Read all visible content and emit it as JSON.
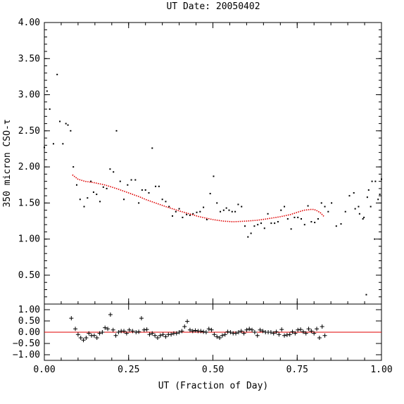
{
  "title": "UT Date: 20050402",
  "colors": {
    "axis": "#000000",
    "fit": "#e00000",
    "points": "#000000",
    "zero_line": "#e00000"
  },
  "chart_data": [
    {
      "type": "scatter",
      "name": "tau-panel",
      "title": "UT Date: 20050402",
      "xlabel": "",
      "ylabel": "350 micron CSO-τ",
      "xlim": [
        0.0,
        1.0
      ],
      "ylim": [
        0.1,
        4.0
      ],
      "yticks": [
        0.5,
        1.0,
        1.5,
        2.0,
        2.5,
        3.0,
        3.5,
        4.0
      ],
      "ytick_labels": [
        "0.50",
        "1.00",
        "1.50",
        "2.00",
        "2.50",
        "3.00",
        "3.50",
        "4.00"
      ],
      "grid": false,
      "series": [
        {
          "marker": "dot",
          "color": "#000000",
          "x": [
            0.0,
            0.008,
            0.016,
            0.027,
            0.038,
            0.046,
            0.055,
            0.064,
            0.07,
            0.078,
            0.086,
            0.096,
            0.106,
            0.118,
            0.128,
            0.138,
            0.146,
            0.155,
            0.165,
            0.175,
            0.185,
            0.195,
            0.205,
            0.214,
            0.225,
            0.236,
            0.247,
            0.258,
            0.27,
            0.28,
            0.29,
            0.3,
            0.31,
            0.32,
            0.33,
            0.34,
            0.35,
            0.36,
            0.37,
            0.38,
            0.39,
            0.4,
            0.41,
            0.422,
            0.432,
            0.441,
            0.452,
            0.462,
            0.472,
            0.482,
            0.492,
            0.502,
            0.512,
            0.522,
            0.532,
            0.54,
            0.548,
            0.557,
            0.566,
            0.575,
            0.585,
            0.595,
            0.604,
            0.613,
            0.623,
            0.633,
            0.643,
            0.653,
            0.663,
            0.673,
            0.683,
            0.693,
            0.702,
            0.712,
            0.722,
            0.732,
            0.742,
            0.752,
            0.762,
            0.772,
            0.782,
            0.792,
            0.802,
            0.812,
            0.822,
            0.832,
            0.842,
            0.852,
            0.866,
            0.88,
            0.893,
            0.905,
            0.918,
            0.932,
            0.945,
            0.958,
            0.968,
            0.98,
            0.99,
            1.0
          ],
          "y": [
            2.27,
            3.05,
            2.8,
            2.32,
            3.28,
            2.63,
            2.32,
            2.6,
            2.58,
            2.5,
            2.0,
            1.75,
            1.55,
            1.45,
            1.57,
            1.8,
            1.65,
            1.62,
            1.52,
            1.72,
            1.7,
            1.97,
            1.93,
            2.5,
            1.8,
            1.55,
            1.75,
            1.82,
            1.82,
            1.5,
            1.68,
            1.68,
            1.64,
            2.26,
            1.73,
            1.73,
            1.55,
            1.52,
            1.45,
            1.32,
            1.38,
            1.42,
            1.3,
            1.34,
            1.33,
            1.35,
            1.37,
            1.38,
            1.44,
            1.27,
            1.63,
            1.87,
            1.5,
            1.38,
            1.4,
            1.43,
            1.4,
            1.38,
            1.38,
            1.48,
            1.45,
            1.18,
            1.03,
            1.08,
            1.18,
            1.2,
            1.22,
            1.15,
            1.35,
            1.22,
            1.22,
            1.24,
            1.4,
            1.45,
            1.28,
            1.14,
            1.3,
            1.3,
            1.28,
            1.2,
            1.46,
            1.24,
            1.23,
            1.28,
            1.5,
            1.45,
            1.38,
            1.5,
            1.18,
            1.21,
            1.38,
            1.6,
            1.64,
            1.45,
            1.28,
            1.58,
            1.45,
            1.0,
            1.55,
            1.83
          ]
        },
        {
          "marker": "dot",
          "color": "#000000",
          "x": [
            0.922,
            0.935,
            0.948,
            0.955,
            0.962,
            0.972,
            0.982,
            0.995
          ],
          "y": [
            1.42,
            1.35,
            1.3,
            0.23,
            1.68,
            1.8,
            1.8,
            1.62
          ]
        },
        {
          "marker": "line",
          "color": "#e00000",
          "x": [
            0.083,
            0.1,
            0.12,
            0.15,
            0.18,
            0.2,
            0.22,
            0.25,
            0.28,
            0.3,
            0.33,
            0.36,
            0.4,
            0.43,
            0.46,
            0.5,
            0.53,
            0.56,
            0.6,
            0.63,
            0.66,
            0.7,
            0.73,
            0.75,
            0.77,
            0.79,
            0.8,
            0.81,
            0.82,
            0.83
          ],
          "y": [
            1.89,
            1.83,
            1.8,
            1.78,
            1.75,
            1.72,
            1.69,
            1.64,
            1.59,
            1.55,
            1.5,
            1.45,
            1.39,
            1.35,
            1.31,
            1.27,
            1.25,
            1.24,
            1.25,
            1.26,
            1.28,
            1.31,
            1.34,
            1.37,
            1.4,
            1.41,
            1.41,
            1.39,
            1.36,
            1.31
          ]
        }
      ]
    },
    {
      "type": "scatter",
      "name": "residual-panel",
      "xlabel": "UT (Fraction of Day)",
      "ylabel": "",
      "xlim": [
        0.0,
        1.0
      ],
      "ylim": [
        -1.25,
        1.25
      ],
      "yticks": [
        -1.0,
        -0.5,
        0.0,
        0.5,
        1.0
      ],
      "ytick_labels": [
        "−1.00",
        "−0.50",
        "0.00",
        "0.50",
        "1.00"
      ],
      "xticks": [
        0.0,
        0.25,
        0.5,
        0.75,
        1.0
      ],
      "xtick_labels": [
        "0.00",
        "0.25",
        "0.50",
        "0.75",
        "1.00"
      ],
      "zero_line": 0.0,
      "grid": false,
      "series": [
        {
          "marker": "plus",
          "color": "#000000",
          "x": [
            0.08,
            0.092,
            0.1,
            0.108,
            0.116,
            0.124,
            0.132,
            0.14,
            0.148,
            0.156,
            0.164,
            0.172,
            0.18,
            0.188,
            0.196,
            0.204,
            0.212,
            0.22,
            0.228,
            0.236,
            0.244,
            0.252,
            0.262,
            0.272,
            0.28,
            0.288,
            0.296,
            0.304,
            0.312,
            0.32,
            0.328,
            0.336,
            0.344,
            0.352,
            0.36,
            0.368,
            0.376,
            0.384,
            0.392,
            0.4,
            0.408,
            0.416,
            0.424,
            0.432,
            0.44,
            0.448,
            0.456,
            0.464,
            0.472,
            0.48,
            0.488,
            0.496,
            0.504,
            0.512,
            0.52,
            0.528,
            0.536,
            0.544,
            0.552,
            0.56,
            0.568,
            0.576,
            0.584,
            0.592,
            0.6,
            0.608,
            0.616,
            0.624,
            0.632,
            0.64,
            0.648,
            0.656,
            0.664,
            0.672,
            0.68,
            0.688,
            0.696,
            0.704,
            0.712,
            0.72,
            0.728,
            0.736,
            0.744,
            0.752,
            0.76,
            0.768,
            0.776,
            0.784,
            0.792,
            0.8,
            0.808,
            0.816,
            0.824,
            0.832
          ],
          "y": [
            0.62,
            0.15,
            -0.1,
            -0.25,
            -0.35,
            -0.25,
            -0.05,
            -0.15,
            -0.15,
            -0.25,
            -0.05,
            0.0,
            0.2,
            0.15,
            0.78,
            0.1,
            -0.15,
            0.0,
            0.05,
            0.05,
            -0.05,
            0.1,
            0.05,
            0.0,
            0.02,
            0.62,
            0.1,
            0.12,
            -0.1,
            -0.05,
            -0.15,
            -0.25,
            -0.15,
            -0.1,
            -0.2,
            -0.1,
            -0.1,
            -0.05,
            -0.05,
            0.0,
            0.05,
            0.25,
            0.48,
            0.1,
            0.05,
            0.08,
            0.05,
            0.05,
            0.02,
            0.0,
            0.15,
            0.1,
            -0.1,
            -0.2,
            -0.25,
            -0.15,
            -0.1,
            0.02,
            0.0,
            -0.05,
            -0.05,
            0.0,
            0.05,
            -0.05,
            0.1,
            0.15,
            0.1,
            0.0,
            -0.15,
            0.1,
            0.05,
            0.0,
            0.0,
            0.0,
            -0.05,
            0.02,
            -0.1,
            0.12,
            -0.15,
            -0.12,
            -0.1,
            0.02,
            -0.05,
            0.1,
            0.12,
            0.02,
            -0.05,
            0.15,
            0.05,
            -0.05,
            0.15,
            -0.25,
            0.25,
            -0.15
          ]
        }
      ]
    }
  ]
}
